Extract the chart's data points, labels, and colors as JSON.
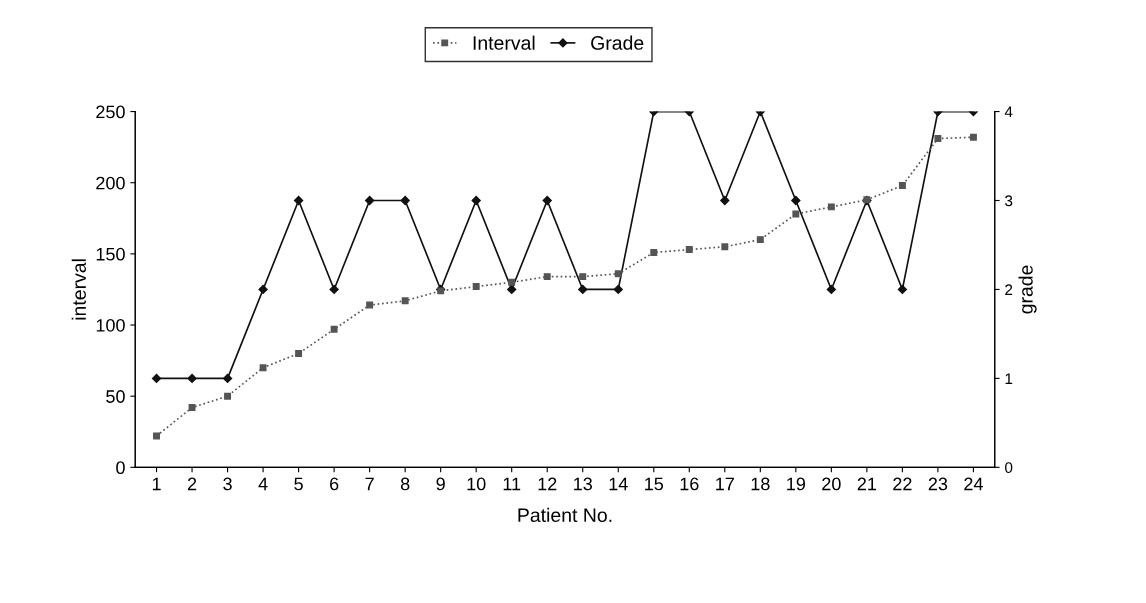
{
  "chart_data": {
    "type": "line",
    "xlabel": "Patient No.",
    "ylabel": "interval",
    "y2label": "grade",
    "categories": [
      "1",
      "2",
      "3",
      "4",
      "5",
      "6",
      "7",
      "8",
      "9",
      "10",
      "11",
      "12",
      "13",
      "14",
      "15",
      "16",
      "17",
      "18",
      "19",
      "20",
      "21",
      "22",
      "23",
      "24"
    ],
    "series": [
      {
        "name": "Interval",
        "color": "#555555",
        "marker": "square",
        "line_style": "dotted",
        "values": [
          22,
          42,
          50,
          70,
          80,
          97,
          114,
          117,
          124,
          127,
          130,
          134,
          134,
          136,
          151,
          153,
          155,
          160,
          178,
          183,
          188,
          198,
          231,
          232
        ]
      },
      {
        "name": "Grade",
        "color": "#111111",
        "marker": "diamond",
        "line_style": "solid",
        "axis": "y2",
        "values": [
          1,
          1,
          1,
          2,
          3,
          2,
          3,
          3,
          2,
          3,
          2,
          3,
          2,
          2,
          4,
          4,
          3,
          4,
          3,
          2,
          3,
          2,
          4,
          4
        ]
      }
    ],
    "ylim": [
      0,
      250
    ],
    "yticks": [
      0,
      50,
      100,
      150,
      200,
      250
    ],
    "y2lim": [
      0,
      4
    ],
    "y2ticks": [
      0,
      1,
      2,
      3,
      4
    ],
    "grid": false,
    "legend": "top"
  }
}
